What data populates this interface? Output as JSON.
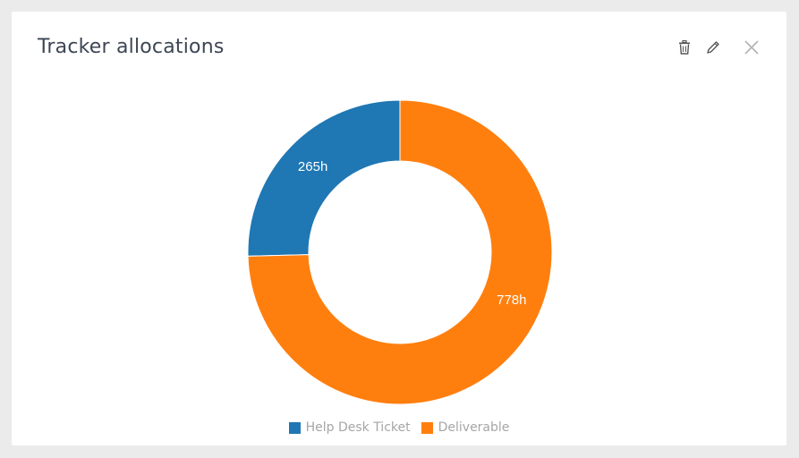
{
  "widget": {
    "title": "Tracker allocations",
    "toolbar": {
      "delete_icon": "trash-icon",
      "edit_icon": "pencil-icon",
      "close_icon": "close-icon"
    }
  },
  "chart_data": {
    "type": "pie",
    "donut": true,
    "title": "",
    "legend_position": "bottom",
    "categories": [
      "Help Desk Ticket",
      "Deliverable"
    ],
    "values": [
      265,
      778
    ],
    "labels": [
      "265h",
      "778h"
    ],
    "unit": "h",
    "colors": [
      "#1f77b4",
      "#ff7f0e"
    ]
  }
}
